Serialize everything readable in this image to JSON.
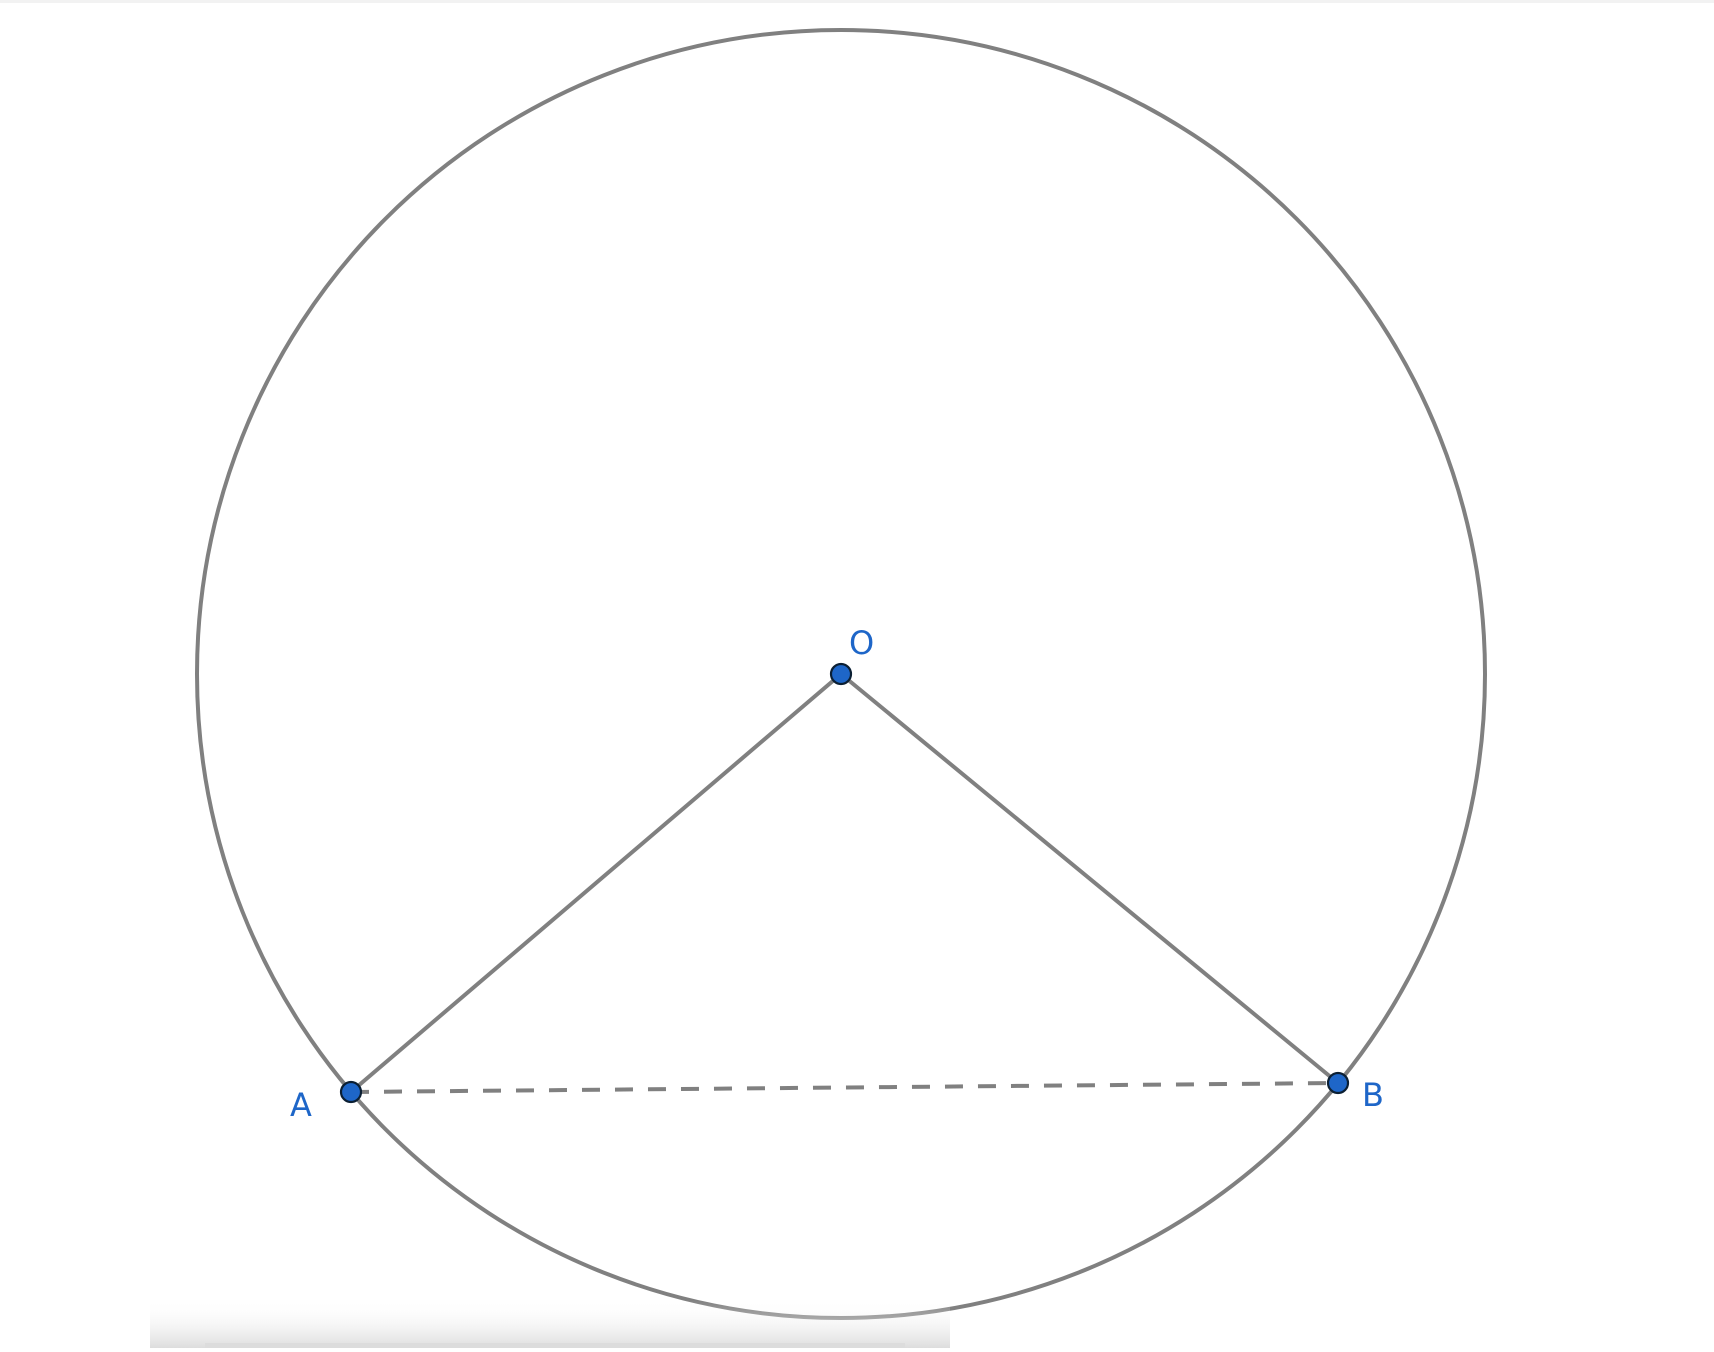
{
  "diagram": {
    "points": {
      "O": {
        "label": "O"
      },
      "A": {
        "label": "A"
      },
      "B": {
        "label": "B"
      }
    },
    "segments": [
      {
        "from": "O",
        "to": "A",
        "style": "solid"
      },
      {
        "from": "O",
        "to": "B",
        "style": "solid"
      },
      {
        "from": "A",
        "to": "B",
        "style": "dashed"
      }
    ],
    "circle": {
      "center": "O",
      "through": "A"
    },
    "colors": {
      "line": "#808080",
      "point_fill": "#1e66c8",
      "point_stroke": "#0b1f33",
      "label": "#1e66c8"
    }
  }
}
